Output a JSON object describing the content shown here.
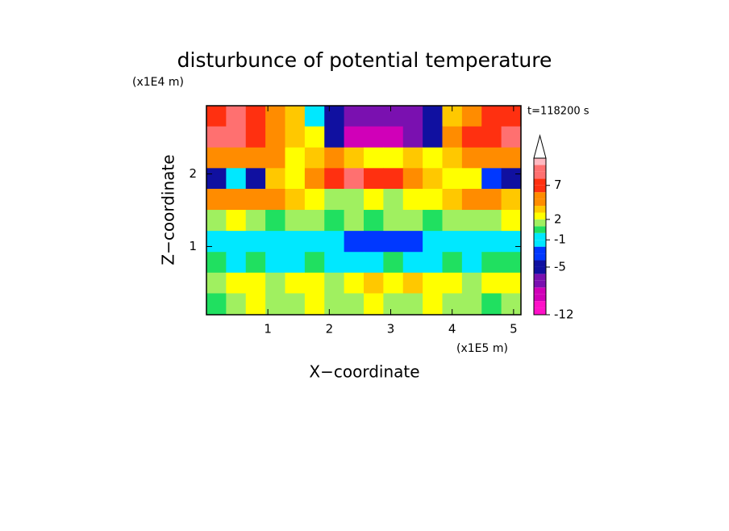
{
  "chart_data": {
    "type": "contour",
    "title": "disturbunce of potential temperature",
    "y_scale_note": "(x1E4 m)",
    "x_scale_note": "(x1E5 m)",
    "xlabel": "X−coordinate",
    "ylabel": "Z−coordinate",
    "time_label": "t=118200 s",
    "xlim": [
      0,
      5.12
    ],
    "ylim": [
      0.06,
      2.94
    ],
    "xticks": [
      1,
      2,
      3,
      4,
      5
    ],
    "yticks": [
      1,
      2
    ],
    "x": [
      0.16,
      0.48,
      0.8,
      1.12,
      1.44,
      1.76,
      2.08,
      2.4,
      2.72,
      3.04,
      3.36,
      3.68,
      4.0,
      4.32,
      4.64,
      4.96
    ],
    "y": [
      2.8,
      2.51,
      2.22,
      1.94,
      1.65,
      1.36,
      1.07,
      0.78,
      0.5,
      0.21
    ],
    "z": [
      [
        7,
        9,
        7,
        5,
        3,
        -2,
        -6,
        -7,
        -8,
        -8,
        -7,
        -6,
        3,
        5,
        6,
        7
      ],
      [
        9,
        8,
        7,
        5,
        3,
        2,
        -6,
        -9,
        -10,
        -10,
        -8,
        -5,
        4,
        6,
        7,
        8
      ],
      [
        5,
        4,
        5,
        4,
        2,
        3,
        4,
        3,
        2,
        2,
        3,
        2,
        3,
        4,
        5,
        4
      ],
      [
        -5,
        -1,
        -5,
        3,
        2,
        4,
        7,
        8,
        7,
        7,
        5,
        3,
        2,
        2,
        -4,
        -5
      ],
      [
        4,
        5,
        4,
        4,
        3,
        2,
        1,
        1,
        2,
        1,
        2,
        2,
        3,
        4,
        4,
        3
      ],
      [
        1,
        2,
        1,
        0,
        1,
        1,
        0,
        1,
        0,
        1,
        1,
        0,
        1,
        1,
        1,
        2
      ],
      [
        -1,
        -1,
        -1,
        -2,
        -1,
        -1,
        -2,
        -3,
        -4,
        -4,
        -3,
        -2,
        -1,
        -1,
        -2,
        -1
      ],
      [
        0,
        -1,
        0,
        -1,
        -1,
        0,
        -1,
        -1,
        -1,
        0,
        -1,
        -1,
        0,
        -1,
        0,
        0
      ],
      [
        1,
        2,
        2,
        1,
        2,
        2,
        1,
        2,
        3,
        2,
        3,
        2,
        2,
        1,
        2,
        2
      ],
      [
        0,
        1,
        2,
        1,
        1,
        2,
        1,
        1,
        2,
        1,
        1,
        2,
        1,
        1,
        0,
        1
      ]
    ],
    "levels": [
      -12,
      -11,
      -10,
      -9,
      -8,
      -7,
      -6,
      -5,
      -4,
      -3,
      -2,
      -1,
      0,
      1,
      2,
      3,
      4,
      5,
      6,
      7,
      8,
      9,
      10,
      11
    ],
    "colors": [
      "#ff10c8",
      "#ff10c8",
      "#d000b8",
      "#d000b8",
      "#7a10b0",
      "#7a10b0",
      "#1010a0",
      "#1010a0",
      "#0038ff",
      "#0038ff",
      "#00e8ff",
      "#00e8ff",
      "#20e060",
      "#a0f060",
      "#ffff00",
      "#ffc800",
      "#ff8c00",
      "#ff8c00",
      "#ff3010",
      "#ff3010",
      "#ff7070",
      "#ff7070",
      "#ffb8c0"
    ],
    "colorbar_ticks": [
      -12,
      -5,
      -1,
      2,
      7
    ],
    "extend_top": true
  }
}
